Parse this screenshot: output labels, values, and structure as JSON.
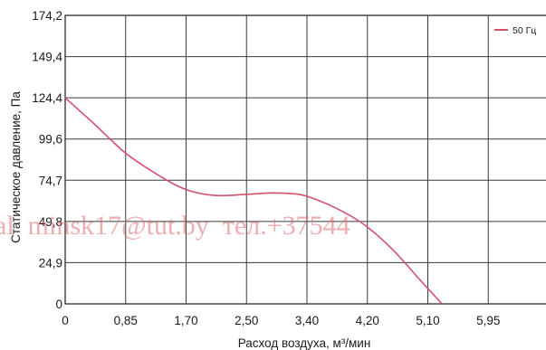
{
  "chart_data": {
    "type": "line",
    "xlabel": "Расход воздуха, м³/мин",
    "ylabel": "Статическое давление, Па",
    "x_ticks": [
      "0",
      "0,85",
      "1,70",
      "2,50",
      "3,40",
      "4,20",
      "5,10",
      "5,95"
    ],
    "y_ticks": [
      "0",
      "24,9",
      "49,8",
      "74,7",
      "99,6",
      "124,4",
      "149,4",
      "174,2"
    ],
    "xlim": [
      0,
      6.8
    ],
    "ylim": [
      0,
      174.2
    ],
    "grid": true,
    "legend_position": "top-right",
    "colors": {
      "series": "#d4506b",
      "grid": "#3a3a3a",
      "axis": "#1a1a1a"
    },
    "series": [
      {
        "name": "50 Гц",
        "x": [
          0,
          0.4,
          0.85,
          1.3,
          1.7,
          2.1,
          2.5,
          2.9,
          3.2,
          3.4,
          3.8,
          4.2,
          4.6,
          5.0,
          5.3
        ],
        "y": [
          124.4,
          109,
          91,
          78,
          69,
          65.5,
          66,
          67,
          66.5,
          65,
          58,
          48,
          33,
          14,
          0
        ]
      }
    ]
  },
  "watermark": "al  minsk17@tut.by  тел.+37544"
}
